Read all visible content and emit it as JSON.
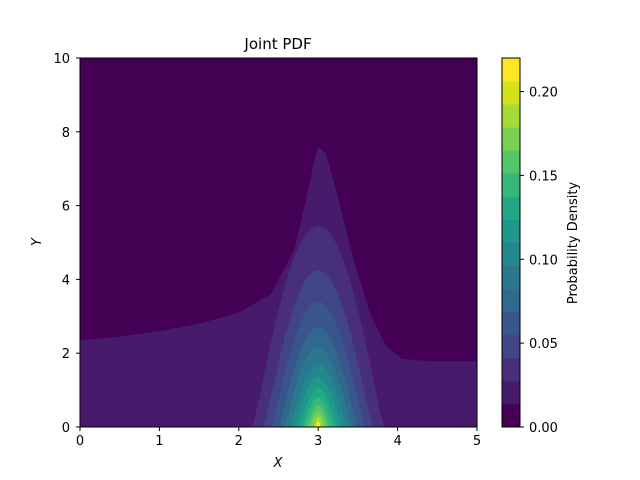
{
  "chart_data": {
    "type": "contourf",
    "title": "Joint PDF",
    "xlabel": "X",
    "ylabel": "Y",
    "xlim": [
      0,
      5
    ],
    "ylim": [
      0,
      10
    ],
    "xticks": [
      "0",
      "1",
      "2",
      "3",
      "4",
      "5"
    ],
    "yticks": [
      "0",
      "2",
      "4",
      "6",
      "8",
      "10"
    ],
    "colormap": "viridis",
    "colorbar": {
      "label": "Probability Density",
      "range": [
        0.0,
        0.22
      ],
      "ticks": [
        "0.00",
        "0.05",
        "0.10",
        "0.15",
        "0.20"
      ],
      "tick_values": [
        0.0,
        0.05,
        0.1,
        0.15,
        0.2
      ],
      "level_colors": [
        "#440154",
        "#481a6c",
        "#472f7d",
        "#414487",
        "#39568c",
        "#31688e",
        "#2a788e",
        "#23888e",
        "#1f988b",
        "#22a884",
        "#35b779",
        "#54c568",
        "#7ad151",
        "#a5db36",
        "#d2e21b",
        "#fde725"
      ]
    },
    "contour_levels": [
      {
        "level": 0.0147,
        "xspan": [
          0.0,
          5.0
        ]
      },
      {
        "level": 0.0293,
        "xspan": [
          2.17,
          3.83
        ]
      },
      {
        "level": 0.044,
        "xspan": [
          2.31,
          3.69
        ]
      },
      {
        "level": 0.0587,
        "xspan": [
          2.41,
          3.59
        ]
      },
      {
        "level": 0.0733,
        "xspan": [
          2.5,
          3.5
        ]
      },
      {
        "level": 0.088,
        "xspan": [
          2.57,
          3.43
        ]
      },
      {
        "level": 0.1027,
        "xspan": [
          2.64,
          3.36
        ]
      },
      {
        "level": 0.1173,
        "xspan": [
          2.7,
          3.3
        ]
      },
      {
        "level": 0.132,
        "xspan": [
          2.76,
          3.24
        ]
      },
      {
        "level": 0.1467,
        "xspan": [
          2.81,
          3.19
        ]
      },
      {
        "level": 0.1613,
        "xspan": [
          2.86,
          3.14
        ]
      },
      {
        "level": 0.176,
        "xspan": [
          2.9,
          3.1
        ]
      },
      {
        "level": 0.1907,
        "xspan": [
          2.94,
          3.06
        ]
      },
      {
        "level": 0.2053,
        "xspan": [
          2.97,
          3.03
        ]
      }
    ],
    "peak": {
      "x": 3.0,
      "y": 0.0,
      "value": 0.22
    },
    "grid": false
  }
}
